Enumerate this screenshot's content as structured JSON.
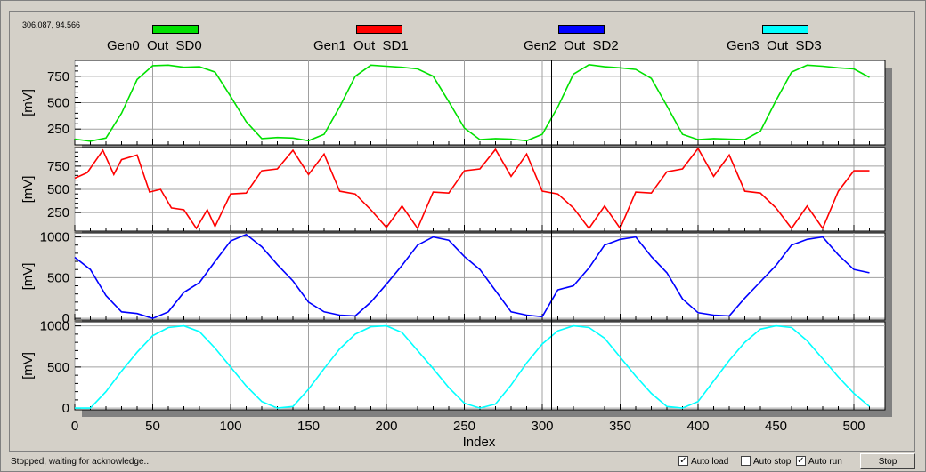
{
  "coord_readout": "306.087, 94.566",
  "status": "Stopped, waiting for acknowledge...",
  "controls": {
    "auto_load": {
      "label": "Auto load",
      "checked": true
    },
    "auto_stop": {
      "label": "Auto stop",
      "checked": false
    },
    "auto_run": {
      "label": "Auto run",
      "checked": true
    },
    "stop_label": "Stop"
  },
  "legend": [
    {
      "name": "Gen0_Out_SD0",
      "color": "#00e000"
    },
    {
      "name": "Gen1_Out_SD1",
      "color": "#ff0000"
    },
    {
      "name": "Gen2_Out_SD2",
      "color": "#0000ff"
    },
    {
      "name": "Gen3_Out_SD3",
      "color": "#00ffff"
    }
  ],
  "cursor_x": 306,
  "chart_data": {
    "type": "line",
    "xlabel": "Index",
    "xlim": [
      0,
      520
    ],
    "xticks": [
      0,
      50,
      100,
      150,
      200,
      250,
      300,
      350,
      400,
      450,
      500
    ],
    "panels": [
      {
        "series": "Gen0_Out_SD0",
        "color": "#00e000",
        "ylabel": "[mV]",
        "ylim": [
          100,
          900
        ],
        "yticks": [
          250,
          500,
          750
        ],
        "x": [
          0,
          10,
          20,
          30,
          40,
          50,
          60,
          70,
          80,
          90,
          100,
          110,
          120,
          130,
          140,
          150,
          160,
          170,
          180,
          190,
          200,
          210,
          220,
          230,
          240,
          250,
          260,
          270,
          280,
          290,
          300,
          310,
          320,
          330,
          340,
          350,
          360,
          370,
          380,
          390,
          400,
          410,
          420,
          430,
          440,
          450,
          460,
          470,
          480,
          490,
          500,
          510
        ],
        "y": [
          155,
          135,
          165,
          400,
          720,
          850,
          855,
          835,
          840,
          790,
          560,
          320,
          160,
          170,
          165,
          140,
          200,
          460,
          750,
          855,
          845,
          835,
          820,
          750,
          510,
          260,
          150,
          160,
          155,
          140,
          200,
          460,
          770,
          860,
          840,
          830,
          815,
          730,
          470,
          200,
          150,
          160,
          155,
          150,
          230,
          520,
          790,
          855,
          845,
          830,
          820,
          740
        ]
      },
      {
        "series": "Gen1_Out_SD1",
        "color": "#ff0000",
        "ylabel": "[mV]",
        "ylim": [
          50,
          950
        ],
        "yticks": [
          250,
          500,
          750
        ],
        "x": [
          0,
          8,
          18,
          25,
          30,
          40,
          48,
          55,
          62,
          70,
          78,
          85,
          90,
          100,
          110,
          120,
          130,
          140,
          150,
          160,
          170,
          180,
          190,
          200,
          210,
          220,
          230,
          240,
          250,
          260,
          270,
          280,
          290,
          300,
          310,
          320,
          330,
          340,
          350,
          360,
          370,
          380,
          390,
          400,
          410,
          420,
          430,
          440,
          450,
          460,
          470,
          480,
          490,
          500,
          510
        ],
        "y": [
          620,
          680,
          920,
          660,
          820,
          870,
          470,
          500,
          300,
          280,
          80,
          280,
          100,
          450,
          460,
          700,
          720,
          920,
          660,
          880,
          480,
          450,
          280,
          90,
          320,
          80,
          470,
          460,
          700,
          720,
          930,
          640,
          880,
          480,
          450,
          300,
          80,
          320,
          80,
          470,
          460,
          690,
          720,
          940,
          640,
          870,
          480,
          460,
          300,
          80,
          320,
          80,
          480,
          700,
          700
        ]
      },
      {
        "series": "Gen2_Out_SD2",
        "color": "#0000ff",
        "ylabel": "[mV]",
        "ylim": [
          -20,
          1050
        ],
        "yticks": [
          0,
          500,
          1000
        ],
        "x": [
          0,
          10,
          20,
          30,
          40,
          50,
          60,
          70,
          80,
          90,
          100,
          110,
          120,
          130,
          140,
          150,
          160,
          170,
          180,
          190,
          200,
          210,
          220,
          230,
          240,
          250,
          260,
          270,
          280,
          290,
          300,
          310,
          320,
          330,
          340,
          350,
          360,
          370,
          380,
          390,
          400,
          410,
          420,
          430,
          440,
          450,
          460,
          470,
          480,
          490,
          500,
          510
        ],
        "y": [
          750,
          600,
          280,
          80,
          60,
          0,
          80,
          320,
          440,
          700,
          950,
          1030,
          880,
          660,
          460,
          200,
          80,
          40,
          30,
          200,
          420,
          650,
          900,
          1000,
          960,
          760,
          600,
          340,
          80,
          40,
          20,
          350,
          400,
          620,
          900,
          970,
          1000,
          760,
          560,
          240,
          70,
          40,
          30,
          250,
          450,
          650,
          900,
          970,
          1000,
          780,
          600,
          560
        ]
      },
      {
        "series": "Gen3_Out_SD3",
        "color": "#00ffff",
        "ylabel": "[mV]",
        "ylim": [
          -20,
          1050
        ],
        "yticks": [
          0,
          500,
          1000
        ],
        "x": [
          0,
          10,
          20,
          30,
          40,
          50,
          60,
          70,
          80,
          90,
          100,
          110,
          120,
          130,
          140,
          150,
          160,
          170,
          180,
          190,
          200,
          210,
          220,
          230,
          240,
          250,
          260,
          270,
          280,
          290,
          300,
          310,
          320,
          330,
          340,
          350,
          360,
          370,
          380,
          390,
          400,
          410,
          420,
          430,
          440,
          450,
          460,
          470,
          480,
          490,
          500,
          510
        ],
        "y": [
          0,
          0,
          200,
          450,
          680,
          880,
          980,
          1000,
          930,
          730,
          500,
          270,
          80,
          0,
          20,
          230,
          480,
          720,
          900,
          990,
          1000,
          920,
          700,
          480,
          250,
          60,
          0,
          50,
          280,
          550,
          780,
          940,
          1000,
          980,
          850,
          620,
          390,
          180,
          20,
          0,
          80,
          330,
          580,
          800,
          960,
          1000,
          980,
          820,
          600,
          380,
          180,
          20
        ]
      }
    ]
  }
}
